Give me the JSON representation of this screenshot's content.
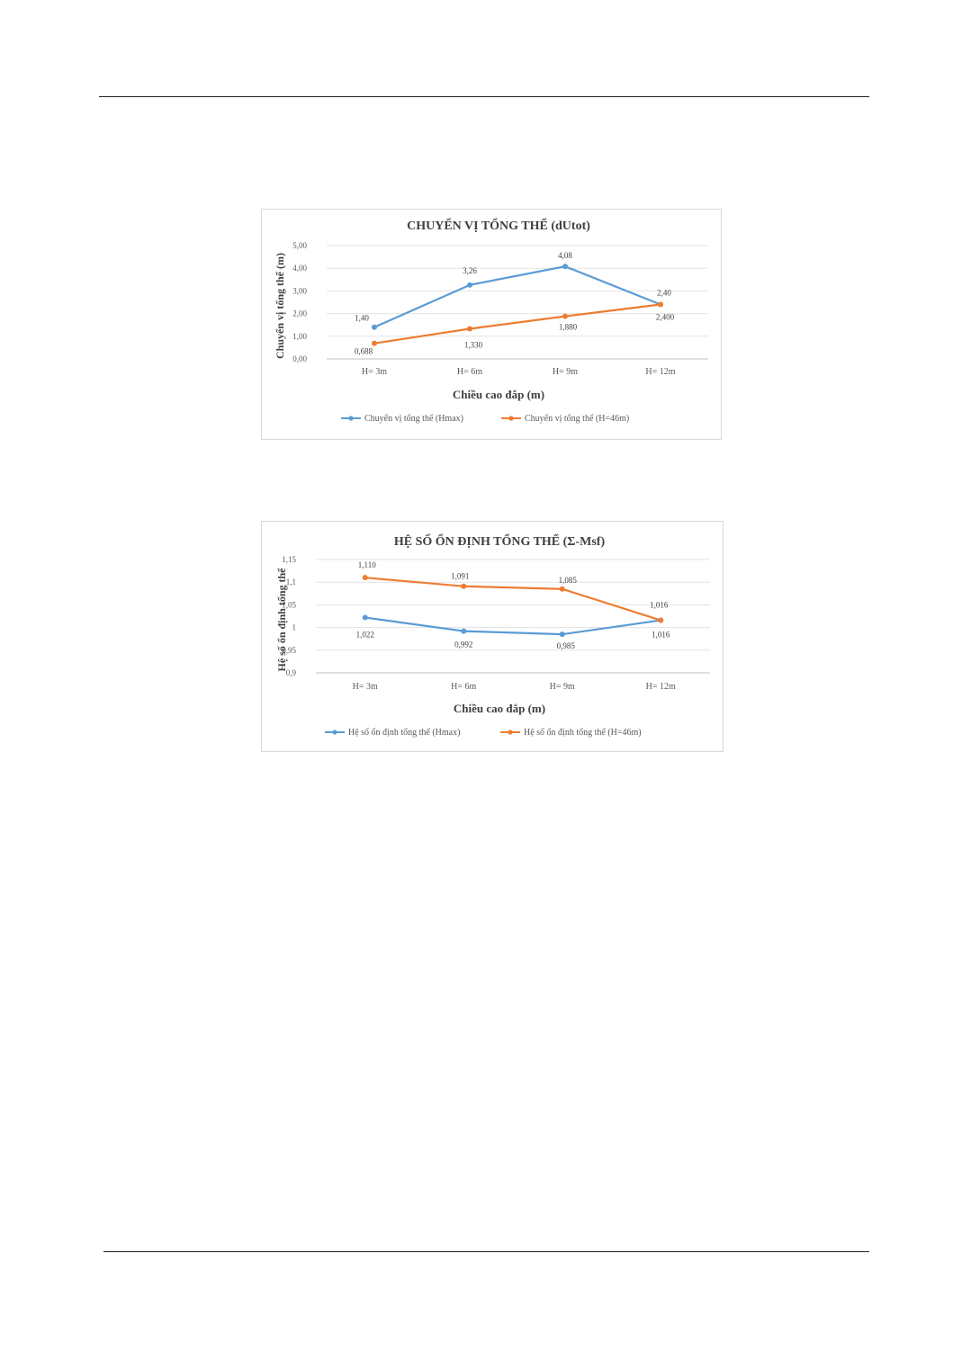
{
  "chart_data": [
    {
      "type": "line",
      "title": "CHUYỂN VỊ TỔNG THỂ (dUtot)",
      "xlabel": "Chiều cao đắp (m)",
      "ylabel": "Chuyển vị tổng thể (m)",
      "categories": [
        "H= 3m",
        "H= 6m",
        "H= 9m",
        "H= 12m"
      ],
      "ylim": [
        0,
        5
      ],
      "yticks": [
        "0,00",
        "1,00",
        "2,00",
        "3,00",
        "4,00",
        "5,00"
      ],
      "ytick_values": [
        0,
        1,
        2,
        3,
        4,
        5
      ],
      "series": [
        {
          "name": "Chuyển vị tổng thể (Hmax)",
          "color": "#5b9bd5",
          "values": [
            1.4,
            3.26,
            4.08,
            2.4
          ],
          "labels": [
            "1,40",
            "3,26",
            "4,08",
            "2,40"
          ]
        },
        {
          "name": "Chuyển vị tổng thể (H=46m)",
          "color": "#ed7d31",
          "values": [
            0.688,
            1.33,
            1.88,
            2.4
          ],
          "labels": [
            "0,688",
            "1,330",
            "1,880",
            "2,400"
          ]
        }
      ],
      "grid": true,
      "legend": "bottom"
    },
    {
      "type": "line",
      "title": "HỆ SỐ ỔN ĐỊNH TỔNG THỂ (Σ-Msf)",
      "xlabel": "Chiều cao đắp (m)",
      "ylabel": "Hệ số ổn định tổng thể",
      "categories": [
        "H= 3m",
        "H= 6m",
        "H= 9m",
        "H= 12m"
      ],
      "ylim": [
        0.9,
        1.15
      ],
      "yticks": [
        "0,9",
        "0,95",
        "1",
        "1,05",
        "1,1",
        "1,15"
      ],
      "ytick_values": [
        0.9,
        0.95,
        1.0,
        1.05,
        1.1,
        1.15
      ],
      "series": [
        {
          "name": "Hệ số ổn định tổng thể (Hmax)",
          "color": "#5b9bd5",
          "values": [
            1.022,
            0.992,
            0.985,
            1.016
          ],
          "labels": [
            "1,022",
            "0,992",
            "0,985",
            "1,016"
          ]
        },
        {
          "name": "Hệ số ổn định tổng thể (H=46m)",
          "color": "#ed7d31",
          "values": [
            1.11,
            1.091,
            1.085,
            1.016
          ],
          "labels": [
            "1,110",
            "1,091",
            "1,085",
            "1,016"
          ]
        }
      ],
      "grid": true,
      "legend": "bottom"
    }
  ]
}
